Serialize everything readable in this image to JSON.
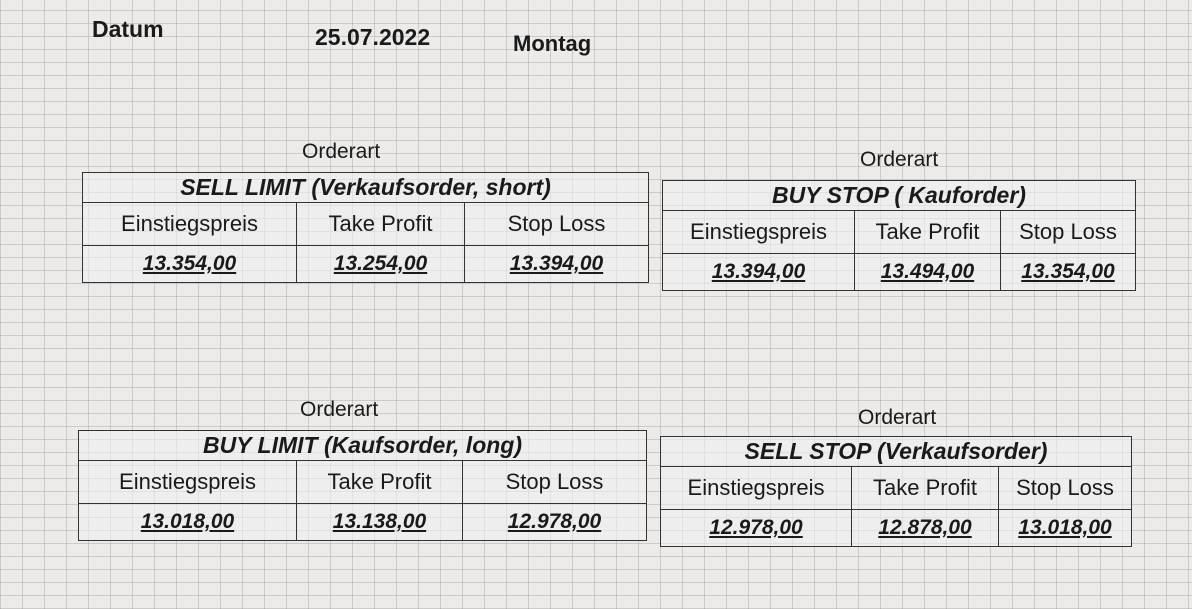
{
  "header": {
    "label": "Datum",
    "date": "25.07.2022",
    "weekday": "Montag"
  },
  "tables": [
    {
      "caption": "Orderart",
      "title": "SELL LIMIT (Verkaufsorder, short)",
      "columns": [
        "Einstiegspreis",
        "Take Profit",
        "Stop Loss"
      ],
      "values": [
        "13.354,00",
        "13.254,00",
        "13.394,00"
      ]
    },
    {
      "caption": "Orderart",
      "title": "BUY STOP ( Kauforder)",
      "columns": [
        "Einstiegspreis",
        "Take Profit",
        "Stop Loss"
      ],
      "values": [
        "13.394,00",
        "13.494,00",
        "13.354,00"
      ]
    },
    {
      "caption": "Orderart",
      "title": "BUY LIMIT (Kaufsorder, long)",
      "columns": [
        "Einstiegspreis",
        "Take Profit",
        "Stop Loss"
      ],
      "values": [
        "13.018,00",
        "13.138,00",
        "12.978,00"
      ]
    },
    {
      "caption": "Orderart",
      "title": "SELL STOP (Verkaufsorder)",
      "columns": [
        "Einstiegspreis",
        "Take Profit",
        "Stop Loss"
      ],
      "values": [
        "12.978,00",
        "12.878,00",
        "13.018,00"
      ]
    }
  ]
}
